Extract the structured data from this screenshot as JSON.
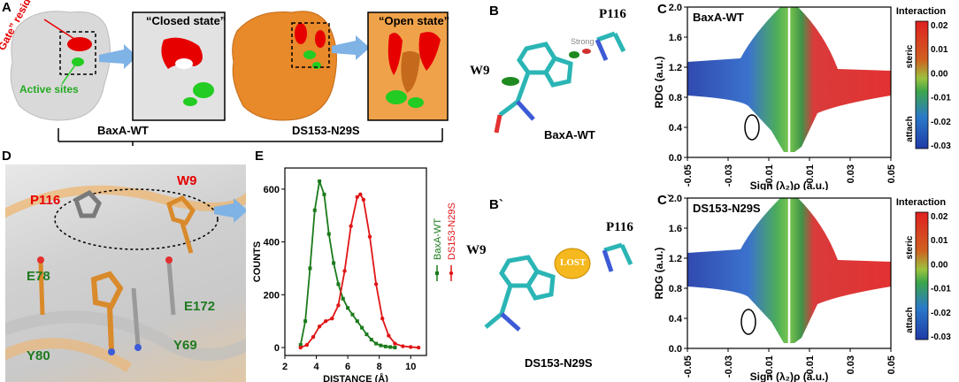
{
  "panel_labels": {
    "A": "A",
    "B": "B",
    "B2": "B`",
    "C": "C",
    "C2": "C`",
    "D": "D",
    "E": "E"
  },
  "panel_a": {
    "gate_label": "“Gate” residues",
    "active_label": "Active sites",
    "closed_label": "“Closed state”",
    "open_label": "“Open state”",
    "wt_name": "BaxA-WT",
    "mut_name": "DS153-N29S",
    "colors": {
      "gate": "#e60000",
      "active": "#22cc22",
      "wt_surface": "#d9d9d9",
      "mut_surface": "#e8892a"
    }
  },
  "panel_b": {
    "res1": "P116",
    "res2": "W9",
    "strong": "Strong",
    "name": "BaxA-WT"
  },
  "panel_b2": {
    "res1": "P116",
    "res2": "W9",
    "lost": "LOST",
    "name": "DS153-N29S"
  },
  "panel_d": {
    "residues": [
      "P116",
      "W9",
      "E78",
      "E172",
      "Y80",
      "Y69"
    ]
  },
  "panel_c": {
    "title": "BaxA-WT",
    "xlabel": "Sign (λ₂)ρ (a.u.)",
    "ylabel": "RDG (a.u.)",
    "xticks": [
      "-0.05",
      "-0.03",
      "-0.01",
      "0.01",
      "0.03",
      "0.05"
    ],
    "yticks": [
      "0.0",
      "0.4",
      "0.8",
      "1.2",
      "1.6",
      "2.0"
    ],
    "cb_title": "Interaction",
    "cb_ticks": [
      "0.02",
      "0.01",
      "0.00",
      "-0.01",
      "-0.02",
      "-0.03"
    ],
    "cb_top": "steric",
    "cb_bottom": "attach"
  },
  "panel_c2": {
    "title": "DS153-N29S",
    "xlabel": "Sign (λ₂)ρ (a.u.)",
    "ylabel": "RDG (a.u.)",
    "xticks": [
      "-0.05",
      "-0.03",
      "-0.01",
      "0.01",
      "0.03",
      "0.05"
    ],
    "yticks": [
      "0.0",
      "0.4",
      "0.8",
      "1.2",
      "1.6",
      "2.0"
    ],
    "cb_title": "Interaction",
    "cb_ticks": [
      "0.02",
      "0.01",
      "0.00",
      "-0.01",
      "-0.02",
      "-0.03"
    ],
    "cb_top": "steric",
    "cb_bottom": "attach"
  },
  "chart_data": {
    "type": "line",
    "xlabel": "DISTANCE (Å)",
    "ylabel": "COUNTS",
    "xlim": [
      2,
      11
    ],
    "ylim": [
      -30,
      680
    ],
    "xticks": [
      2,
      4,
      6,
      8,
      10
    ],
    "yticks": [
      0,
      200,
      400,
      600
    ],
    "legend_position": "right-vertical",
    "series": [
      {
        "name": "BaxA-WT",
        "color": "#1a7a1a",
        "x": [
          3.0,
          3.3,
          3.6,
          3.9,
          4.2,
          4.5,
          4.8,
          5.1,
          5.4,
          5.7,
          6.0,
          6.3,
          6.6,
          6.9,
          7.2,
          7.5,
          7.8,
          8.1,
          8.4,
          8.7,
          9.0
        ],
        "y": [
          10,
          100,
          300,
          520,
          630,
          580,
          430,
          320,
          240,
          185,
          150,
          125,
          100,
          75,
          50,
          30,
          15,
          8,
          4,
          2,
          0
        ]
      },
      {
        "name": "DS153-N29S",
        "color": "#e01515",
        "x": [
          3.0,
          3.4,
          3.8,
          4.2,
          4.6,
          5.0,
          5.4,
          5.8,
          6.2,
          6.6,
          6.8,
          7.0,
          7.4,
          7.8,
          8.2,
          8.6,
          9.0,
          9.5,
          10.0,
          10.5
        ],
        "y": [
          0,
          10,
          40,
          80,
          100,
          110,
          160,
          290,
          460,
          570,
          580,
          560,
          420,
          240,
          110,
          45,
          15,
          5,
          2,
          0
        ]
      }
    ]
  }
}
